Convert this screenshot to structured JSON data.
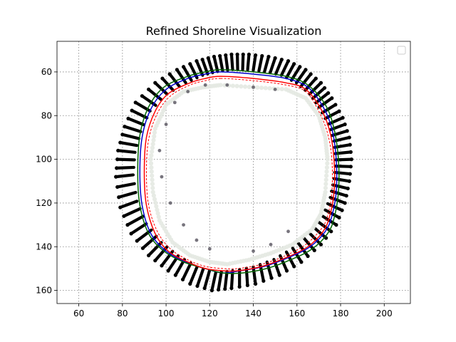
{
  "chart_data": {
    "type": "scatter",
    "title": "Refined Shoreline Visualization",
    "xlabel": "",
    "ylabel": "",
    "xlim": [
      50,
      212
    ],
    "ylim": [
      166,
      46
    ],
    "y_inverted": true,
    "x_ticks": [
      60,
      80,
      100,
      120,
      140,
      160,
      180,
      200
    ],
    "y_ticks": [
      60,
      80,
      100,
      120,
      140,
      160
    ],
    "grid": true,
    "legend": {
      "position": "top-right",
      "entries": []
    },
    "colors": {
      "transects": "#000000",
      "points_light": "#e4e9e2",
      "points_dark": "#4a4652",
      "blue_line": "#0000cc",
      "green_line": "#006400",
      "red_line": "#ff0000",
      "red_dashed": "#ff0000"
    },
    "series": [
      {
        "kind": "outer_transect_points",
        "color": "#000000",
        "x": [
          130,
          138,
          147,
          156,
          164,
          171,
          176,
          181,
          184,
          185,
          184,
          182,
          178,
          171,
          162,
          152,
          141,
          130,
          121,
          111,
          101,
          92,
          84,
          79,
          77,
          78,
          81,
          86,
          95,
          105,
          114,
          122
        ],
        "y": [
          52,
          52,
          53,
          55,
          59,
          65,
          72,
          81,
          90,
          100,
          110,
          120,
          130,
          139,
          147,
          153,
          157,
          159,
          160,
          157,
          151,
          144,
          134,
          122,
          108,
          96,
          85,
          74,
          65,
          59,
          55,
          53
        ]
      },
      {
        "kind": "shoreline_blue",
        "color": "#0000cc",
        "x": [
          125,
          140,
          155,
          165,
          172,
          176,
          178,
          178,
          176,
          173,
          166,
          156,
          145,
          134,
          126,
          118,
          109,
          100,
          93,
          89,
          88,
          89,
          93,
          100,
          110,
          118
        ],
        "y": [
          60,
          61,
          63,
          67,
          76,
          86,
          100,
          115,
          126,
          133,
          140,
          145,
          149,
          151,
          152,
          150,
          147,
          142,
          134,
          121,
          106,
          90,
          77,
          68,
          63,
          61
        ]
      },
      {
        "kind": "shoreline_green",
        "color": "#006400",
        "x": [
          125,
          140,
          155,
          165,
          173,
          177,
          179,
          179,
          177,
          174,
          167,
          157,
          146,
          135,
          126,
          118,
          108,
          99,
          92,
          88,
          87,
          88,
          92,
          99,
          110,
          118
        ],
        "y": [
          59,
          60,
          62,
          66,
          75,
          86,
          100,
          115,
          127,
          134,
          141,
          146,
          150,
          152,
          152,
          150,
          147,
          142,
          134,
          121,
          106,
          89,
          76,
          67,
          62,
          60
        ]
      },
      {
        "kind": "shoreline_red",
        "color": "#ff0000",
        "x": [
          125,
          140,
          155,
          164,
          171,
          175,
          177,
          177,
          175,
          172,
          165,
          155,
          144,
          133,
          126,
          118,
          110,
          101,
          95,
          91,
          90,
          91,
          95,
          101,
          111,
          118
        ],
        "y": [
          62,
          63,
          65,
          68,
          77,
          87,
          100,
          115,
          126,
          133,
          140,
          145,
          149,
          151,
          151,
          150,
          147,
          142,
          134,
          121,
          106,
          90,
          78,
          70,
          65,
          63
        ]
      },
      {
        "kind": "shoreline_red_dashed",
        "color": "#ff0000",
        "x": [
          125,
          140,
          155,
          164,
          170,
          174,
          176,
          176,
          174,
          171,
          164,
          155,
          144,
          133,
          126,
          118,
          110,
          102,
          96,
          92,
          91,
          92,
          96,
          102,
          111,
          118
        ],
        "y": [
          63,
          64,
          66,
          69,
          78,
          88,
          100,
          115,
          126,
          132,
          139,
          144,
          148,
          150,
          150,
          149,
          146,
          141,
          133,
          121,
          106,
          91,
          79,
          71,
          66,
          64
        ]
      },
      {
        "kind": "inner_points",
        "color": "#e4e9e2",
        "x": [
          125,
          140,
          155,
          164,
          170,
          173,
          174,
          173,
          171,
          167,
          158,
          148,
          138,
          128,
          120,
          111,
          103,
          97,
          94,
          93,
          95,
          100,
          108,
          117
        ],
        "y": [
          66,
          67,
          68,
          72,
          80,
          90,
          100,
          115,
          125,
          132,
          139,
          143,
          146,
          148,
          147,
          144,
          138,
          128,
          115,
          100,
          86,
          75,
          69,
          67
        ]
      },
      {
        "kind": "inner_points_dark",
        "color": "#4a4652",
        "x": [
          118,
          128,
          140,
          150,
          110,
          104,
          100,
          97,
          98,
          102,
          108,
          114,
          120,
          140,
          148,
          156
        ],
        "y": [
          66,
          66,
          67,
          68,
          69,
          74,
          84,
          96,
          108,
          120,
          130,
          137,
          141,
          142,
          139,
          133
        ]
      }
    ]
  }
}
